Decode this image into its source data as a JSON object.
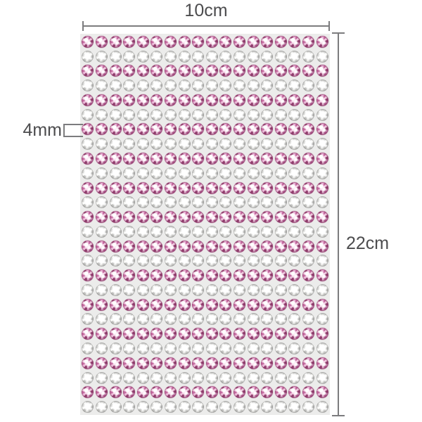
{
  "diagram": {
    "width_label": "10cm",
    "height_label": "22cm",
    "stone_size_label": "4mm"
  },
  "sheet": {
    "rows": 26,
    "columns": 18,
    "row_pattern": [
      "pink",
      "clear"
    ],
    "stones_total": 468
  },
  "colors": {
    "page_bg": "#ffffff",
    "sheet_bg": "#ececeb",
    "line_color": "#7c7c7e",
    "text_color": "#4c4c4e",
    "pink_accent": "#c46ba0",
    "pink_dark": "#93406f",
    "pink_light": "#f3cfe3",
    "clear_shade": "#c9c9c7"
  }
}
